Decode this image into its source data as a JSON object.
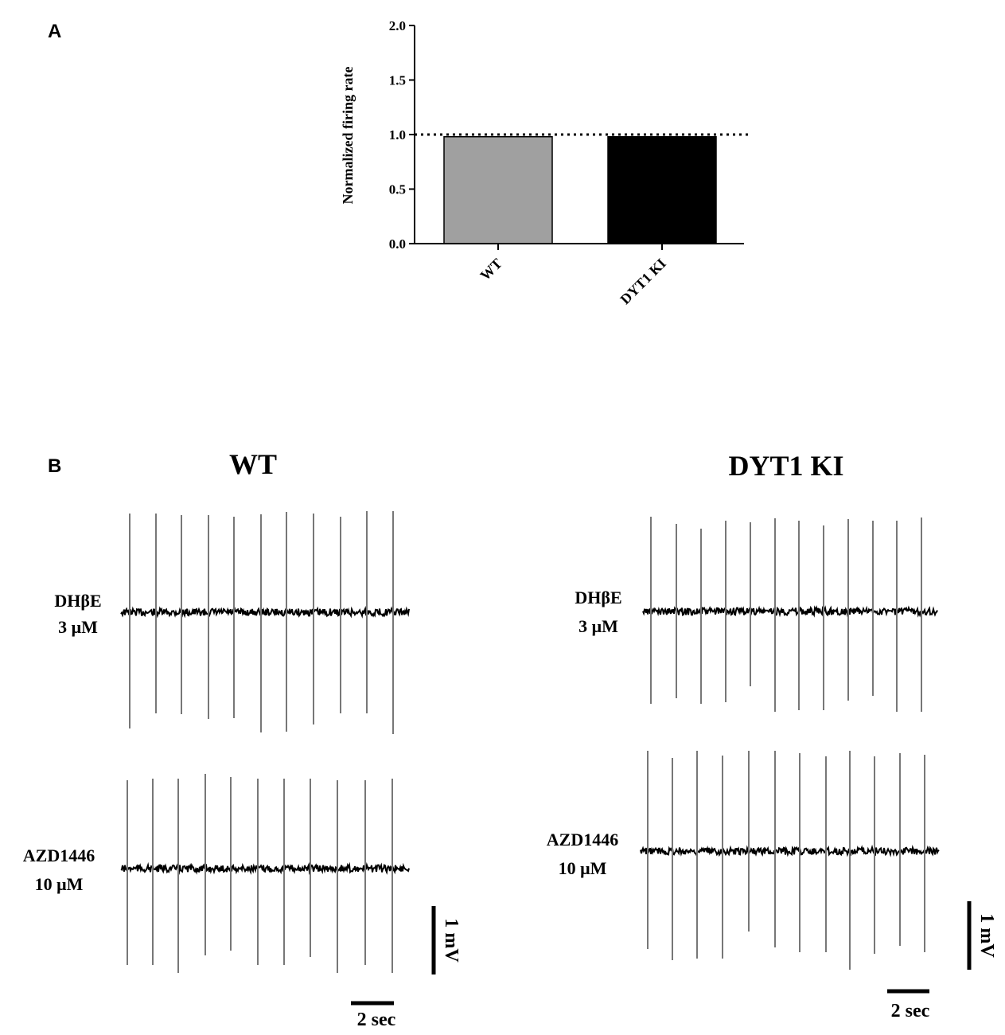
{
  "panels": {
    "a": "A",
    "b": "B"
  },
  "chart_data": [
    {
      "type": "bar",
      "categories": [
        "WT",
        "DYT1 KI"
      ],
      "values": [
        0.98,
        0.98
      ],
      "bar_colors": [
        "#a0a0a0",
        "#000000"
      ],
      "ylabel": "Normalized firing rate",
      "ylim": [
        0,
        2.0
      ],
      "yticks": [
        "0.0",
        "0.5",
        "1.0",
        "1.5",
        "2.0"
      ],
      "reference_line": {
        "y": 1.0,
        "style": "dotted"
      },
      "grid": false
    },
    {
      "type": "line",
      "description_label": "electrophysiology traces",
      "conditions": [
        "WT",
        "DYT1 KI"
      ],
      "traces": [
        {
          "condition": "WT",
          "label_line1": "DHβE",
          "label_line2": "3 μM",
          "spike_count": 11
        },
        {
          "condition": "WT",
          "label_line1": "AZD1446",
          "label_line2": "10 μM",
          "spike_count": 11
        },
        {
          "condition": "DYT1 KI",
          "label_line1": "DHβE",
          "label_line2": "3 μM",
          "spike_count": 12
        },
        {
          "condition": "DYT1 KI",
          "label_line1": "AZD1446",
          "label_line2": "10 μM",
          "spike_count": 12
        }
      ],
      "scale_bars": {
        "voltage": "1 mV",
        "time": "2 sec"
      }
    }
  ]
}
